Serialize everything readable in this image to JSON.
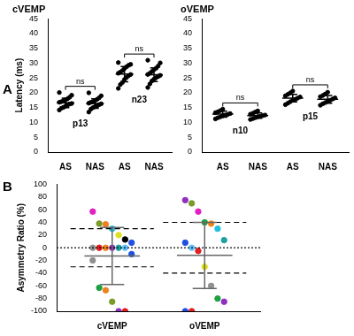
{
  "chart_data": [
    {
      "panel": "A",
      "type": "scatter",
      "title": "cVEMP",
      "y_label": "Latency (ms)",
      "categories": [
        "AS",
        "NAS",
        "AS",
        "NAS"
      ],
      "values": [
        [
          14.2,
          14.8,
          15.1,
          15.5,
          15.9,
          16.2,
          16.4,
          16.8,
          17.0,
          17.3,
          17.6,
          18.0,
          18.5,
          19.2,
          20.1
        ],
        [
          13.5,
          14.5,
          15.0,
          15.3,
          15.6,
          16.0,
          16.3,
          16.5,
          16.8,
          17.0,
          17.4,
          17.8,
          18.3,
          19.0,
          20.0
        ],
        [
          21.5,
          22.8,
          23.5,
          24.5,
          25.2,
          25.8,
          26.2,
          26.6,
          27.0,
          27.5,
          28.2,
          28.8,
          29.3,
          29.6,
          30.2
        ],
        [
          21.8,
          23.0,
          24.0,
          24.6,
          25.1,
          25.5,
          25.9,
          26.2,
          26.6,
          27.2,
          27.8,
          28.3,
          29.0,
          30.1,
          31.0
        ]
      ],
      "mean": [
        16.6,
        16.4,
        26.3,
        26.1
      ],
      "sd": [
        1.6,
        1.6,
        2.6,
        2.3
      ],
      "color": "#000000",
      "group_labels": [
        {
          "label": "p13",
          "categories": [
            0,
            1
          ]
        },
        {
          "label": "n23",
          "categories": [
            2,
            3
          ]
        }
      ],
      "comparisons": [
        {
          "label": "ns",
          "categories": [
            0,
            1
          ]
        },
        {
          "label": "ns",
          "categories": [
            2,
            3
          ]
        }
      ],
      "ylim": [
        0,
        45
      ],
      "yticks": [
        0,
        5,
        10,
        15,
        20,
        25,
        30,
        35,
        40,
        45
      ],
      "grid": false
    },
    {
      "type": "scatter",
      "title": "oVEMP",
      "categories": [
        "AS",
        "NAS",
        "AS",
        "NAS"
      ],
      "values": [
        [
          11.2,
          11.6,
          11.9,
          12.2,
          12.5,
          12.7,
          13.0,
          13.3,
          13.6,
          14.0,
          14.5
        ],
        [
          11.0,
          11.3,
          11.6,
          11.9,
          12.1,
          12.3,
          12.5,
          12.8,
          13.1,
          13.5,
          13.9
        ],
        [
          16.0,
          16.5,
          17.0,
          17.5,
          17.8,
          18.2,
          18.6,
          19.0,
          19.5,
          20.0,
          20.6
        ],
        [
          15.8,
          16.3,
          16.7,
          17.1,
          17.5,
          17.9,
          18.3,
          18.7,
          19.1,
          19.6,
          20.2
        ]
      ],
      "mean": [
        12.8,
        12.3,
        18.2,
        17.8
      ],
      "sd": [
        1.0,
        0.9,
        1.3,
        1.3
      ],
      "color": "#000000",
      "group_labels": [
        {
          "label": "n10",
          "categories": [
            0,
            1
          ]
        },
        {
          "label": "p15",
          "categories": [
            2,
            3
          ]
        }
      ],
      "comparisons": [
        {
          "label": "ns",
          "categories": [
            0,
            1
          ]
        },
        {
          "label": "ns",
          "categories": [
            2,
            3
          ]
        }
      ],
      "ylim": [
        0,
        45
      ],
      "yticks": [
        0,
        5,
        10,
        15,
        20,
        25,
        30,
        35,
        40,
        45
      ],
      "grid": false
    },
    {
      "panel": "B",
      "type": "scatter",
      "y_label": "Asymmetry Ratio (%)",
      "categories": [
        "cVEMP",
        "oVEMP"
      ],
      "values": [
        [
          57,
          38,
          37,
          30,
          20,
          13,
          8,
          0,
          0,
          0,
          0,
          0,
          0,
          -10,
          -20,
          -63,
          -67,
          -85,
          -100,
          -100
        ],
        [
          75,
          70,
          57,
          40,
          38,
          30,
          12,
          8,
          0,
          -5,
          -30,
          -60,
          -80,
          -85,
          -100,
          -100
        ]
      ],
      "colors": [
        [
          "#e020c0",
          "#7a9a2a",
          "#f08020",
          "#20c0e0",
          "#e0e020",
          "#000000",
          "#2050e0",
          "#909090",
          "#e02020",
          "#f08020",
          "#9030c0",
          "#20a0a0",
          "#60c0ff",
          "#2050e0",
          "#909090",
          "#20a040",
          "#f08020",
          "#7a9a2a",
          "#9030c0",
          "#e02020"
        ],
        [
          "#9030c0",
          "#7a9a2a",
          "#e020c0",
          "#20a040",
          "#f08020",
          "#20c0e0",
          "#20a0a0",
          "#2050e0",
          "#60c0ff",
          "#e02020",
          "#e0e020",
          "#909090",
          "#20a040",
          "#9030c0",
          "#2050e0",
          "#e02020"
        ]
      ],
      "mean": [
        -13,
        -12
      ],
      "sd": [
        45,
        52
      ],
      "limits": [
        [
          -30,
          30
        ],
        [
          -40,
          40
        ]
      ],
      "reference_line": 0,
      "ylim": [
        -100,
        100
      ],
      "yticks": [
        -100,
        -80,
        -60,
        -40,
        -20,
        0,
        20,
        40,
        60,
        80,
        100
      ],
      "grid": false
    }
  ]
}
